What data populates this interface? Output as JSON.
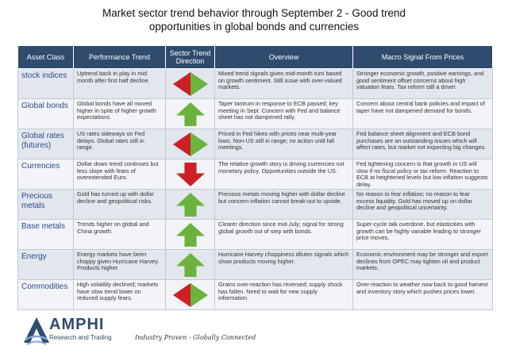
{
  "title": {
    "line1": "Market sector trend behavior through September 2 - Good trend",
    "line2": "opportunities in global bonds and currencies"
  },
  "columns": {
    "asset": "Asset Class",
    "performance": "Performance Trend",
    "direction": "Sector Trend Direction",
    "overview": "Overview",
    "macro": "Macro Signal From Prices"
  },
  "colors": {
    "header_bg": "#2f4b6e",
    "up_arrow": "#6cb33e",
    "down_arrow": "#cc2026",
    "asset_text": "#2c4a8c"
  },
  "rows": [
    {
      "asset": "stock indices",
      "performance": "Uptrend back in play in mid month after first half decline.",
      "direction": "mixed",
      "overview": "Mixed trend signals given mid-month turn based on growth sentiment. Still issue with over-valued markets.",
      "macro": "Stronger economic growth, positive earnings, and good sentiment offset concerns about high valuation fears. Tax reform still a driver."
    },
    {
      "asset": "Global bonds",
      "performance": "Global bonds have all moved higher in spite of higher growth expectations.",
      "direction": "up",
      "overview": "Taper tantrum in response to ECB passed; key meeting in Sept. Concern with Fed and balance sheet has not dampened rally.",
      "macro": "Concern about central bank policies and impact of taper have not dampened demand for bonds."
    },
    {
      "asset": "Global rates (futures)",
      "performance": "US rates sideways on Fed delays. Global rates still in range.",
      "direction": "mixed",
      "overview": "Priced in Fed hikes with prices near multi-year lows. Non-US still in range; no action until fall meetings.",
      "macro": "Fed balance sheet alignment and ECB bond purchases are an outstanding issues which will affect rates, but market not expecting big changes."
    },
    {
      "asset": "Currencies",
      "performance": "Dollar down trend continues but less slope with fears of overextended Euro.",
      "direction": "down",
      "overview": "The relative growth story is driving currencies not monetary policy. Opportunities outside the US.",
      "macro": " Fed tightening concern is that growth in US will slow if no fiscal policy or tax reform. Reaction to ECB at heightened levels but low inflation suggests delay."
    },
    {
      "asset": "Precious metals",
      "performance": "Gold has turned up with dollar decline and geopolitical risks.",
      "direction": "up",
      "overview": "Precious metals moving higher with dollar decline but concern inflation cannot break-out to upside.",
      "macro": "No reason to fear inflation; no reason to fear excess liquidity. Gold has moved up on dollar decline and geopolitical uncertainty."
    },
    {
      "asset": "Base metals",
      "performance": "Trends higher on global and China growth.",
      "direction": "up",
      "overview": "Clearer direction since mid-July; signal for strong global growth out of step with bonds.",
      "macro": "Super-cycle talk overdone, but elasticities with growth can be highly variable leading to stronger price moves."
    },
    {
      "asset": "Energy",
      "performance": "Energy markets have been choppy given Hurricane Harvey. Products higher.",
      "direction": "up",
      "overview": "Hurricane Harvey choppiness dilutes signals which show products moving higher.",
      "macro": "Economic environment may be stronger and export declines from OPEC may tighten oil and product markets."
    },
    {
      "asset": "Commodities",
      "performance": "High volatility declined; markets have slow trend lower on reduced supply fears.",
      "direction": "mixed",
      "overview": "Grains over-reaction has reversed; supply shock has fallen. Need to wait for new supply information.",
      "macro": "Over-reaction to weather now back to good harvest and inventory story which pushes prices lower."
    }
  ],
  "footer": {
    "logo_icon": "amphi-logo-icon",
    "brand": "AMPHI",
    "brand_sub": "Research and Trading",
    "tagline": "Industry Proven - Globally Connected"
  }
}
